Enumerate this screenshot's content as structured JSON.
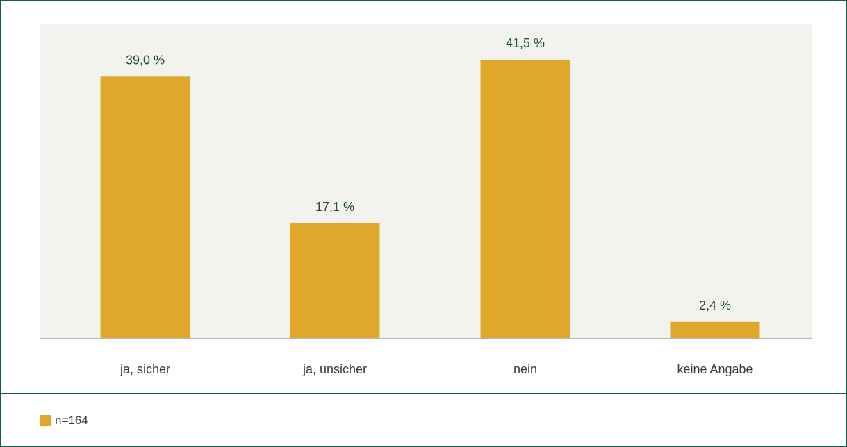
{
  "chart_data": {
    "type": "bar",
    "categories": [
      "ja, sicher",
      "ja, unsicher",
      "nein",
      "keine Angabe"
    ],
    "values": [
      39.0,
      17.1,
      41.5,
      2.4
    ],
    "value_labels": [
      "39,0 %",
      "17,1 %",
      "41,5 %",
      "2,4 %"
    ],
    "ylim": [
      0,
      50
    ],
    "grid": false,
    "legend_position": "bottom-left",
    "colors": {
      "bar": "#e0a82b",
      "plot_background": "#f2f2ee",
      "value_label": "#1f4d3a",
      "category_label": "#3a3a3a",
      "baseline": "#b5b5b5",
      "frame": "#1f5c3f"
    }
  },
  "legend": {
    "label": "n=164"
  }
}
